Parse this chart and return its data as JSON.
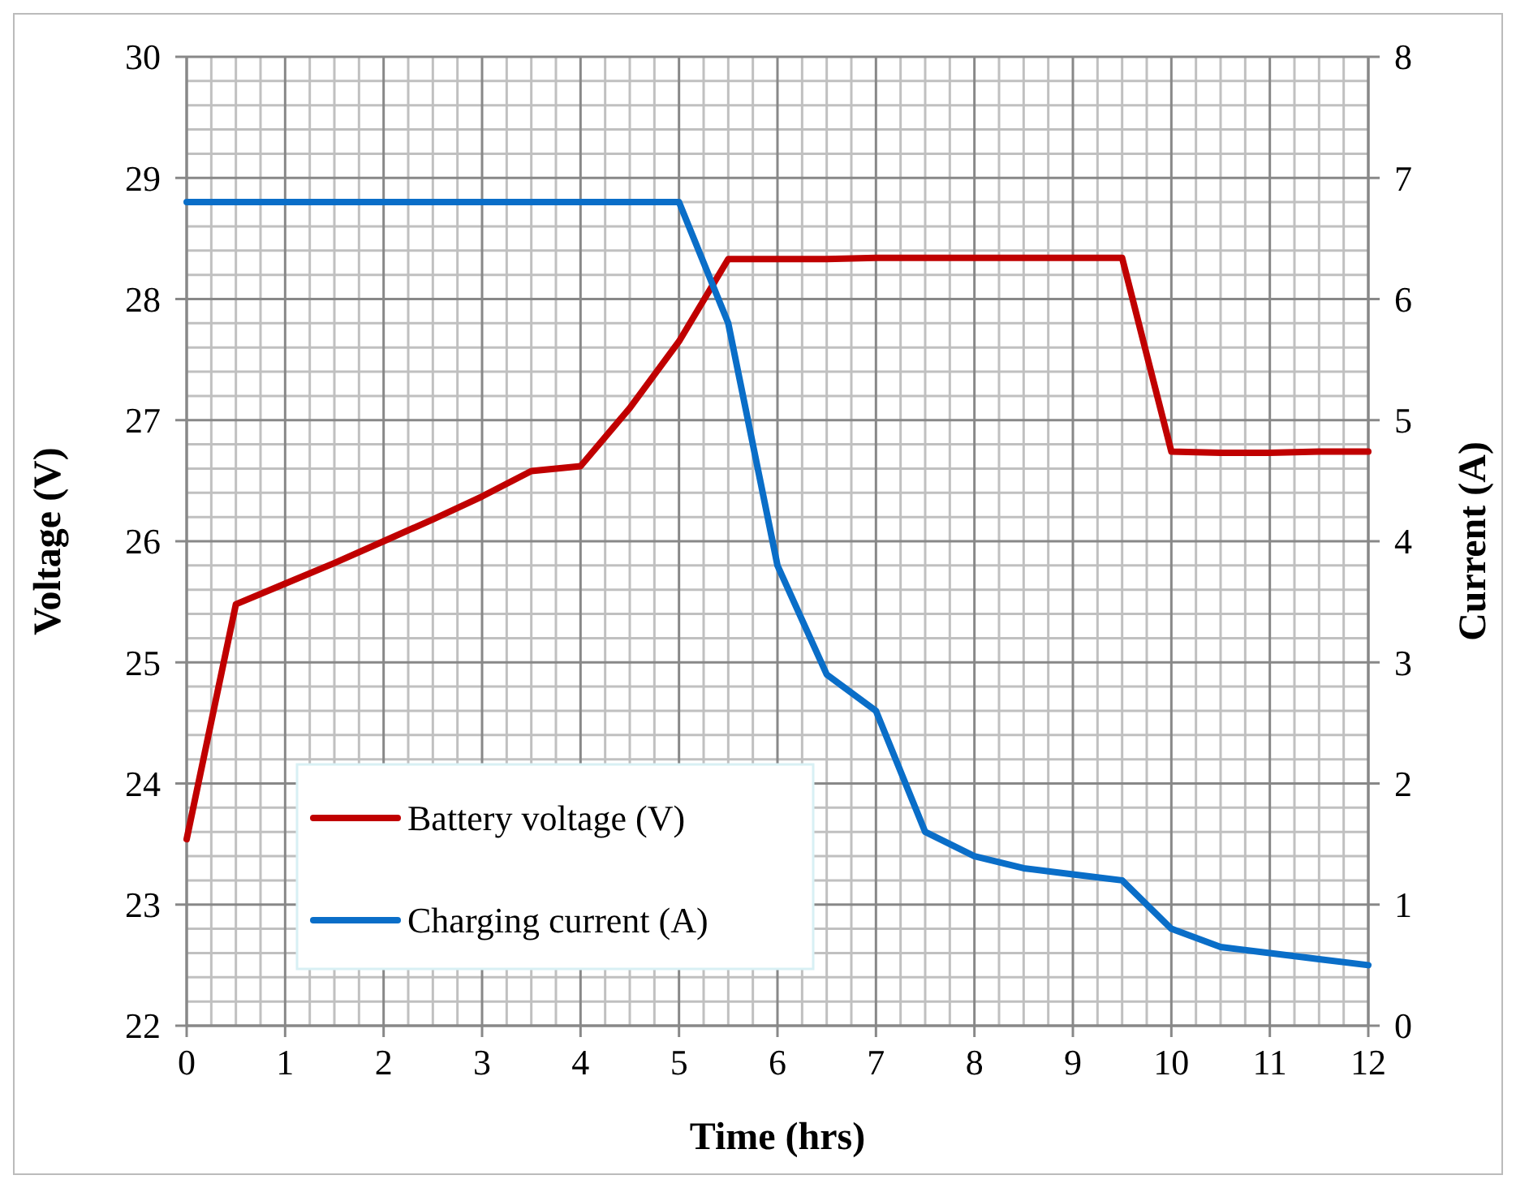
{
  "chart_data": {
    "type": "line",
    "xlabel": "Time (hrs)",
    "ylabel": "Voltage (V)",
    "y2label": "Current (A)",
    "x": [
      0,
      0.5,
      1,
      1.5,
      2,
      2.5,
      3,
      3.5,
      4,
      4.5,
      5,
      5.5,
      6,
      6.5,
      7,
      7.5,
      8,
      8.5,
      9,
      9.5,
      10,
      10.5,
      11,
      11.5,
      12
    ],
    "series": [
      {
        "name": "Battery voltage (V)",
        "color": "#c00000",
        "values": [
          23.54,
          25.48,
          25.65,
          25.82,
          26.0,
          26.18,
          26.37,
          26.58,
          26.62,
          27.1,
          27.65,
          28.33,
          28.33,
          28.33,
          28.34,
          28.34,
          28.34,
          28.34,
          28.34,
          28.34,
          26.74,
          26.73,
          26.73,
          26.74,
          26.74
        ]
      },
      {
        "name": "Charging current (A)",
        "color": "#0a6ec8",
        "axis": "y2",
        "values": [
          6.8,
          6.8,
          6.8,
          6.8,
          6.8,
          6.8,
          6.8,
          6.8,
          6.8,
          6.8,
          6.8,
          5.8,
          3.8,
          2.9,
          2.6,
          1.6,
          1.4,
          1.3,
          1.25,
          1.2,
          0.8,
          0.65,
          0.6,
          0.55,
          0.5
        ]
      }
    ],
    "xlim": [
      0,
      12
    ],
    "xticks": [
      0,
      1,
      2,
      3,
      4,
      5,
      6,
      7,
      8,
      9,
      10,
      11,
      12
    ],
    "ylim": [
      22,
      30
    ],
    "yticks": [
      22,
      23,
      24,
      25,
      26,
      27,
      28,
      29,
      30
    ],
    "y2lim": [
      0,
      8
    ],
    "y2ticks": [
      0,
      1,
      2,
      3,
      4,
      5,
      6,
      7,
      8
    ],
    "grid": true,
    "legend": "bottom left",
    "marker": "none",
    "line_style": "solid"
  }
}
